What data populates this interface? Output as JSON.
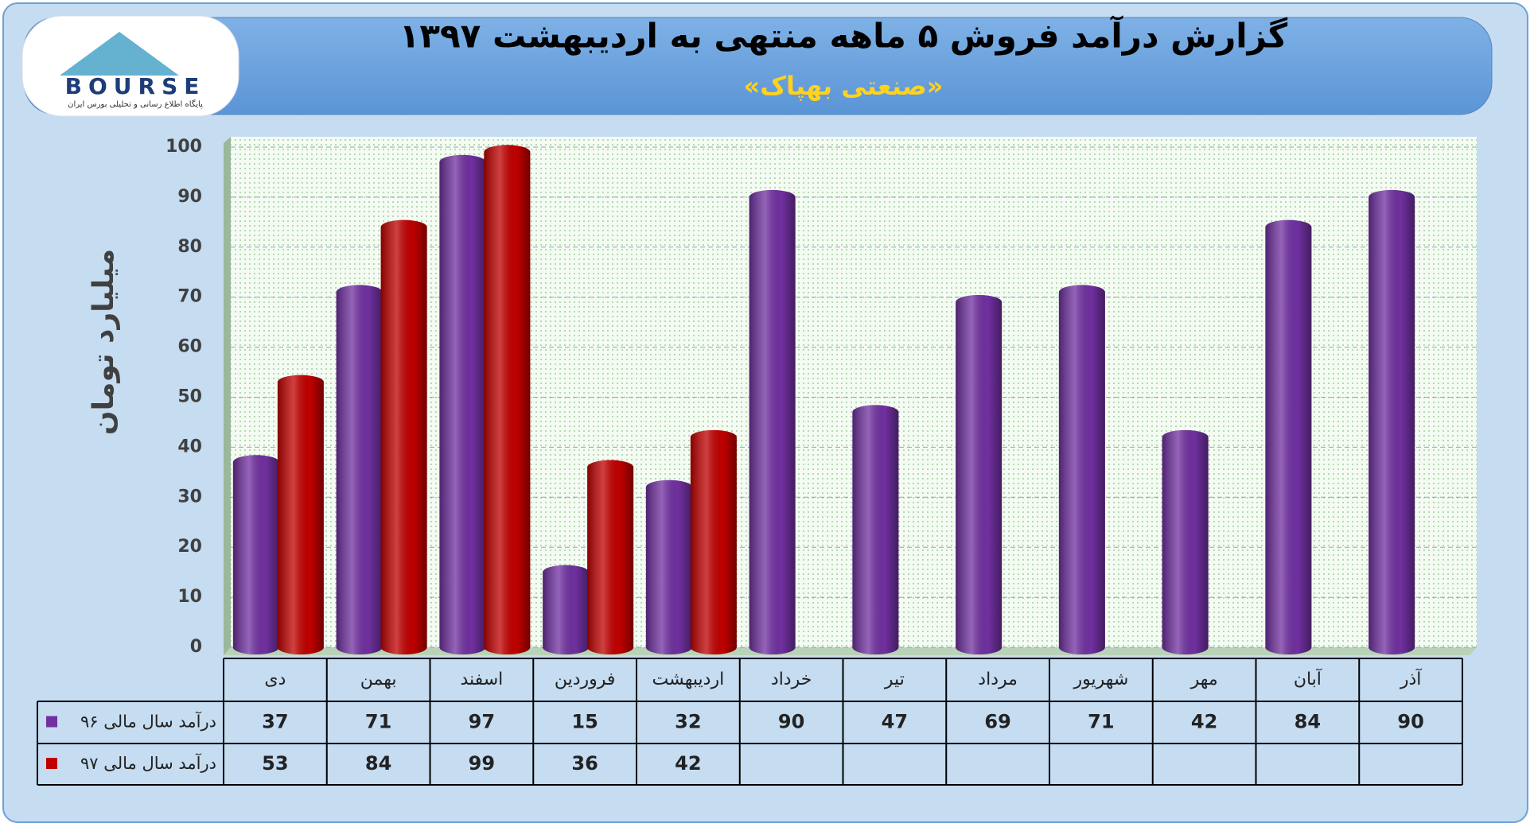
{
  "logo": {
    "text": "BOURSE",
    "tagline": "پایگاه اطلاع رسانی و تحلیلی بورس ایران"
  },
  "chart_data": {
    "type": "bar",
    "title": "گزارش درآمد فروش ۵ ماهه منتهی به اردیبهشت ۱۳۹۷",
    "subtitle": "«صنعتی بهپاک»",
    "y_label": "میلیارد تومان",
    "categories": [
      "دی",
      "بهمن",
      "اسفند",
      "فروردین",
      "اردیبهشت",
      "خرداد",
      "تیر",
      "مرداد",
      "شهریور",
      "مهر",
      "آبان",
      "آذر"
    ],
    "series": [
      {
        "name": "درآمد سال مالی ۹۶",
        "color": "#7030a0",
        "values": [
          37,
          71,
          97,
          15,
          32,
          90,
          47,
          69,
          71,
          42,
          84,
          90
        ]
      },
      {
        "name": "درآمد سال مالی ۹۷",
        "color": "#c00000",
        "values": [
          53,
          84,
          99,
          36,
          42,
          null,
          null,
          null,
          null,
          null,
          null,
          null
        ]
      }
    ],
    "ylim": [
      0,
      100
    ],
    "yticks": [
      0,
      10,
      20,
      30,
      40,
      50,
      60,
      70,
      80,
      90,
      100
    ],
    "grid": true
  }
}
